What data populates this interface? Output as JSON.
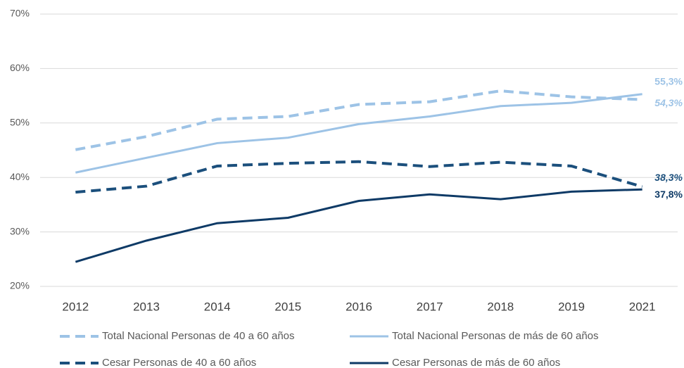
{
  "chart_data": {
    "type": "line",
    "categories": [
      "2012",
      "2013",
      "2014",
      "2015",
      "2016",
      "2017",
      "2018",
      "2019",
      "2021"
    ],
    "ylim": [
      20,
      70
    ],
    "yticks": [
      {
        "value": 20,
        "label": "20%"
      },
      {
        "value": 30,
        "label": "30%"
      },
      {
        "value": 40,
        "label": "40%"
      },
      {
        "value": 50,
        "label": "50%"
      },
      {
        "value": 60,
        "label": "60%"
      },
      {
        "value": 70,
        "label": "70%"
      }
    ],
    "grid": true,
    "legend": "bottom",
    "series": [
      {
        "name": "Total Nacional Personas de 40 a 60 años",
        "color": "#9dc3e6",
        "dash": "dashed",
        "values": [
          45.1,
          47.5,
          50.7,
          51.2,
          53.4,
          53.9,
          55.9,
          54.8,
          54.3
        ],
        "value_labels": [
          null,
          null,
          null,
          null,
          null,
          null,
          null,
          null,
          "54,3%"
        ]
      },
      {
        "name": "Total Nacional Personas de más de 60 años",
        "color": "#9dc3e6",
        "dash": "solid",
        "values": [
          40.9,
          43.6,
          46.3,
          47.3,
          49.8,
          51.2,
          53.1,
          53.7,
          55.3
        ],
        "value_labels": [
          null,
          null,
          null,
          null,
          null,
          null,
          null,
          null,
          "55,3%"
        ]
      },
      {
        "name": "Cesar Personas de 40 a 60 años",
        "color": "#1b4f7c",
        "dash": "dashed",
        "values": [
          37.3,
          38.4,
          42.1,
          42.6,
          42.9,
          42.0,
          42.8,
          42.1,
          38.3
        ],
        "value_labels": [
          null,
          null,
          null,
          null,
          null,
          null,
          null,
          null,
          "38,3%"
        ]
      },
      {
        "name": "Cesar Personas de más de 60 años",
        "color": "#0e3a66",
        "dash": "solid",
        "values": [
          24.5,
          28.4,
          31.6,
          32.6,
          35.7,
          36.9,
          36.0,
          37.4,
          37.8
        ],
        "value_labels": [
          null,
          null,
          null,
          null,
          null,
          null,
          null,
          null,
          "37,8%"
        ]
      }
    ]
  }
}
